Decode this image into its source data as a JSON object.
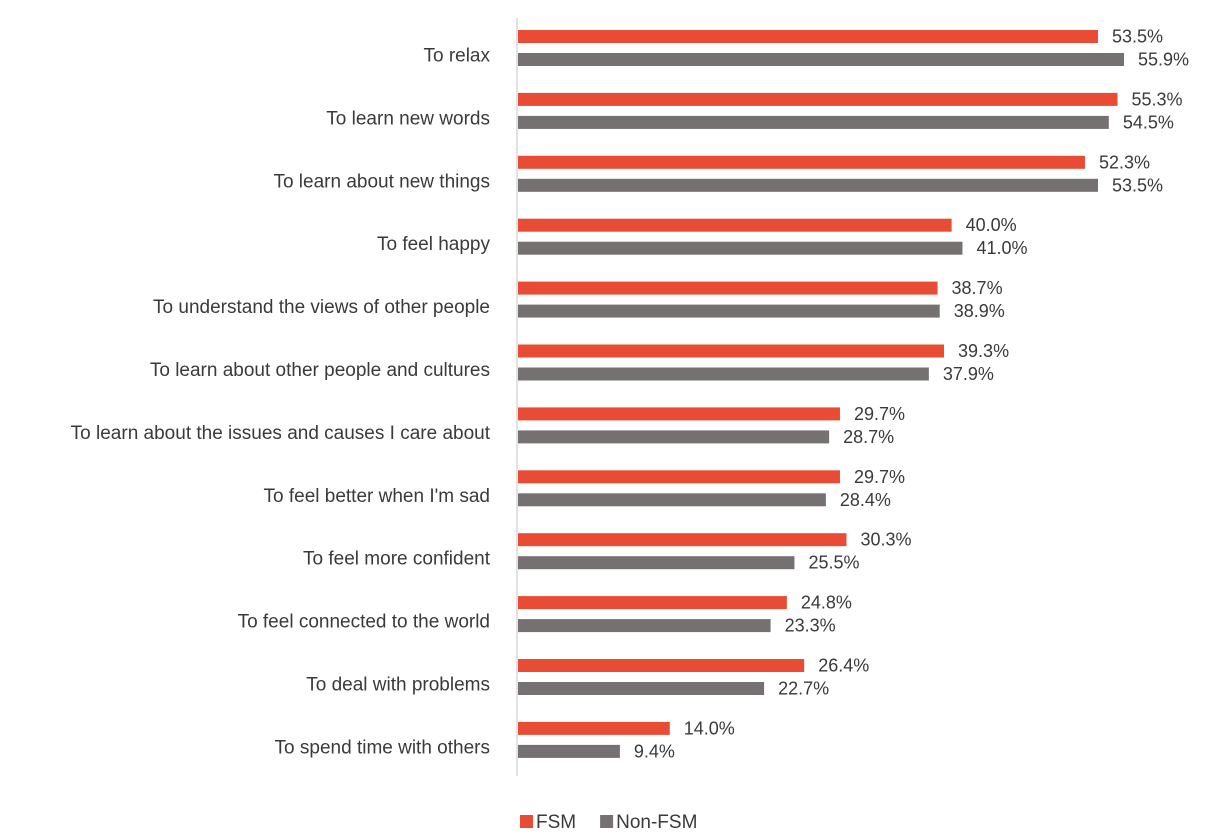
{
  "chart_data": {
    "type": "bar",
    "orientation": "horizontal",
    "categories": [
      "To relax",
      "To learn new words",
      "To learn about new things",
      "To feel happy",
      "To understand the views of other people",
      "To learn about other people and cultures",
      "To learn about the issues and causes I care about",
      "To feel better when I'm sad",
      "To feel more confident",
      "To feel connected to the world",
      "To deal with problems",
      "To spend time with others"
    ],
    "series": [
      {
        "name": "FSM",
        "color": "#e84c35",
        "values": [
          53.5,
          55.3,
          52.3,
          40.0,
          38.7,
          39.3,
          29.7,
          29.7,
          30.3,
          24.8,
          26.4,
          14.0
        ],
        "labels": [
          "53.5%",
          "55.3%",
          "52.3%",
          "40.0%",
          "38.7%",
          "39.3%",
          "29.7%",
          "29.7%",
          "30.3%",
          "24.8%",
          "26.4%",
          "14.0%"
        ]
      },
      {
        "name": "Non-FSM",
        "color": "#767171",
        "values": [
          55.9,
          54.5,
          53.5,
          41.0,
          38.9,
          37.9,
          28.7,
          28.4,
          25.5,
          23.3,
          22.7,
          9.4
        ],
        "labels": [
          "55.9%",
          "54.5%",
          "53.5%",
          "41.0%",
          "38.9%",
          "37.9%",
          "28.7%",
          "28.4%",
          "25.5%",
          "23.3%",
          "22.7%",
          "9.4%"
        ]
      }
    ],
    "xlim": [
      0,
      56
    ],
    "grid": false,
    "legend": "bottom-center"
  }
}
